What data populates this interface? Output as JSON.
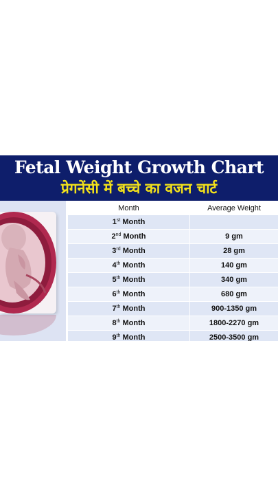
{
  "header": {
    "title": "Fetal Weight Growth Chart",
    "subtitle": "प्रेगनेंसी में बच्चे का वजन चार्ट"
  },
  "table": {
    "columns": [
      "Month",
      "Average Weight"
    ],
    "rows": [
      {
        "num": "1",
        "suffix": "st",
        "label": "Month",
        "weight": ""
      },
      {
        "num": "2",
        "suffix": "nd",
        "label": "Month",
        "weight": "9 gm"
      },
      {
        "num": "3",
        "suffix": "rd",
        "label": "Month",
        "weight": "28 gm"
      },
      {
        "num": "4",
        "suffix": "th",
        "label": "Month",
        "weight": "140 gm"
      },
      {
        "num": "5",
        "suffix": "th",
        "label": "Month",
        "weight": "340 gm"
      },
      {
        "num": "6",
        "suffix": "th",
        "label": "Month",
        "weight": "680 gm"
      },
      {
        "num": "7",
        "suffix": "th",
        "label": "Month",
        "weight": "900-1350 gm"
      },
      {
        "num": "8",
        "suffix": "th",
        "label": "Month",
        "weight": "1800-2270 gm"
      },
      {
        "num": "9",
        "suffix": "th",
        "label": "Month",
        "weight": "2500-3500 gm"
      }
    ]
  },
  "colors": {
    "banner": "#0e1e6b",
    "title": "#ffffff",
    "subtitle": "#f3e21a",
    "row_a": "#dfe6f5",
    "row_b": "#eef2fa",
    "womb": "#b0294f"
  },
  "icons": {
    "illustration": "fetus-in-womb-illustration"
  }
}
